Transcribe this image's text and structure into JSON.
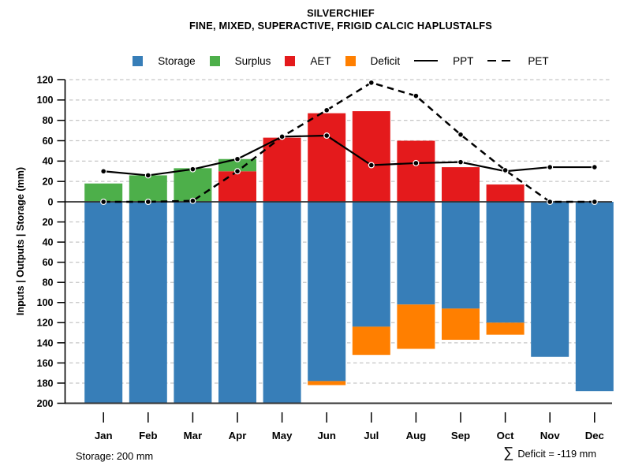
{
  "title": {
    "line1": "SILVERCHIEF",
    "line2": "FINE, MIXED, SUPERACTIVE, FRIGID CALCIC HAPLUSTALFS"
  },
  "legend": [
    {
      "label": "Storage",
      "type": "swatch",
      "color": "#377EB8"
    },
    {
      "label": "Surplus",
      "type": "swatch",
      "color": "#4DAF4A"
    },
    {
      "label": "AET",
      "type": "swatch",
      "color": "#E41A1C"
    },
    {
      "label": "Deficit",
      "type": "swatch",
      "color": "#FF7F00"
    },
    {
      "label": "PPT",
      "type": "solid-line",
      "color": "#000000"
    },
    {
      "label": "PET",
      "type": "dashed-line",
      "color": "#000000"
    }
  ],
  "axes": {
    "y_label": "Inputs | Outputs | Storage    (mm)",
    "y_ticks_above_zero": [
      120,
      100,
      80,
      60,
      40,
      20,
      0
    ],
    "y_ticks_below_zero": [
      20,
      40,
      60,
      80,
      100,
      120,
      140,
      160,
      180,
      200
    ],
    "x_labels": [
      "Jan",
      "Feb",
      "Mar",
      "Apr",
      "May",
      "Jun",
      "Jul",
      "Aug",
      "Sep",
      "Oct",
      "Nov",
      "Dec"
    ]
  },
  "chart_data": {
    "type": "combo-bar-line",
    "categories": [
      "Jan",
      "Feb",
      "Mar",
      "Apr",
      "May",
      "Jun",
      "Jul",
      "Aug",
      "Sep",
      "Oct",
      "Nov",
      "Dec"
    ],
    "units": "mm",
    "ylim_above_zero": [
      0,
      120
    ],
    "ylim_below_zero_inverted": [
      0,
      200
    ],
    "grid": "horizontal dashed every 20 mm",
    "legend_position": "top center",
    "series": [
      {
        "name": "Storage",
        "type": "bar",
        "direction": "down-from-zero",
        "color": "#377EB8",
        "values": [
          200,
          200,
          200,
          200,
          200,
          178,
          124,
          102,
          106,
          120,
          154,
          188
        ]
      },
      {
        "name": "AET",
        "type": "bar",
        "direction": "up-from-zero",
        "color": "#E41A1C",
        "values": [
          0,
          0,
          0,
          30,
          63,
          87,
          89,
          60,
          34,
          17,
          0,
          0
        ]
      },
      {
        "name": "Surplus",
        "type": "bar",
        "direction": "up-stacked-on-AET",
        "color": "#4DAF4A",
        "values": [
          18,
          26,
          33,
          12,
          0,
          0,
          0,
          0,
          0,
          0,
          0,
          0
        ]
      },
      {
        "name": "Deficit",
        "type": "bar",
        "direction": "down-stacked-on-Storage",
        "color": "#FF7F00",
        "values": [
          0,
          0,
          0,
          0,
          0,
          4,
          28,
          44,
          31,
          12,
          0,
          0
        ]
      },
      {
        "name": "PPT",
        "type": "line",
        "style": "solid",
        "color": "#000000",
        "marker": "filled-circle",
        "values": [
          30,
          26,
          32,
          42,
          64,
          65,
          36,
          38,
          39,
          30,
          34,
          34
        ]
      },
      {
        "name": "PET",
        "type": "line",
        "style": "dashed",
        "color": "#000000",
        "marker": "filled-circle",
        "values": [
          0,
          0,
          1,
          30,
          64,
          90,
          117,
          104,
          66,
          31,
          0,
          0
        ]
      }
    ]
  },
  "annotations": {
    "storage_note": "Storage: 200 mm",
    "deficit_sigma": "∑",
    "deficit_text": "Deficit = -119 mm"
  },
  "colors": {
    "storage": "#377EB8",
    "surplus": "#4DAF4A",
    "aet": "#E41A1C",
    "deficit": "#FF7F00",
    "line": "#000000",
    "grid": "#C6C6C6",
    "zero_line": "#333333",
    "background": "#FFFFFF"
  }
}
